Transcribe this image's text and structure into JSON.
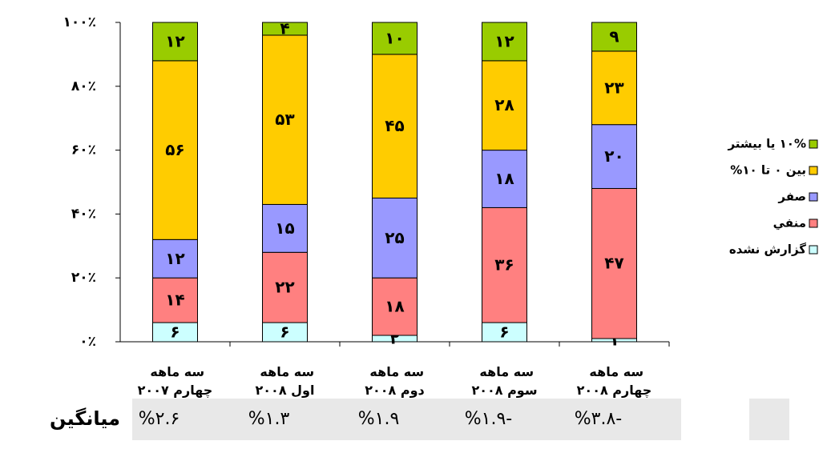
{
  "chart_data": {
    "type": "stacked_bar",
    "categories": [
      "سه ماهه چهارم ۲۰۰۷",
      "سه ماهه اول ۲۰۰۸",
      "سه ماهه دوم ۲۰۰۸",
      "سه ماهه سوم ۲۰۰۸",
      "سه ماهه چهارم ۲۰۰۸"
    ],
    "series": [
      {
        "name": "گزارش نشده",
        "color": "#ccffff",
        "values": [
          6,
          6,
          2,
          6,
          1
        ],
        "value_labels": [
          "۶",
          "۶",
          "۲",
          "۶",
          "۱"
        ]
      },
      {
        "name": "منفي",
        "color": "#ff8080",
        "values": [
          14,
          22,
          18,
          36,
          47
        ],
        "value_labels": [
          "۱۴",
          "۲۲",
          "۱۸",
          "۳۶",
          "۴۷"
        ]
      },
      {
        "name": "صفر",
        "color": "#9999ff",
        "values": [
          12,
          15,
          25,
          18,
          20
        ],
        "value_labels": [
          "۱۲",
          "۱۵",
          "۲۵",
          "۱۸",
          "۲۰"
        ]
      },
      {
        "name": "بين ۰ تا ۱۰%",
        "color": "#ffcc00",
        "values": [
          56,
          53,
          45,
          28,
          23
        ],
        "value_labels": [
          "۵۶",
          "۵۳",
          "۴۵",
          "۲۸",
          "۲۳"
        ]
      },
      {
        "name": "۱۰% يا بيشتر",
        "color": "#99cc00",
        "values": [
          12,
          4,
          10,
          12,
          9
        ],
        "value_labels": [
          "۱۲",
          "۴",
          "۱۰",
          "۱۲",
          "۹"
        ]
      }
    ],
    "ylim": [
      0,
      100
    ],
    "yticks": [
      {
        "value": 0,
        "label": "۰٪"
      },
      {
        "value": 20,
        "label": "۲۰٪"
      },
      {
        "value": 40,
        "label": "۴۰٪"
      },
      {
        "value": 60,
        "label": "۶۰٪"
      },
      {
        "value": 80,
        "label": "۸۰٪"
      },
      {
        "value": 100,
        "label": "۱۰۰٪"
      }
    ],
    "averages": {
      "label": "میانگین",
      "values": [
        "%۲.۶",
        "%۱.۳",
        "%۱.۹",
        "%۱.۹-",
        "%۳.۸-"
      ]
    }
  }
}
